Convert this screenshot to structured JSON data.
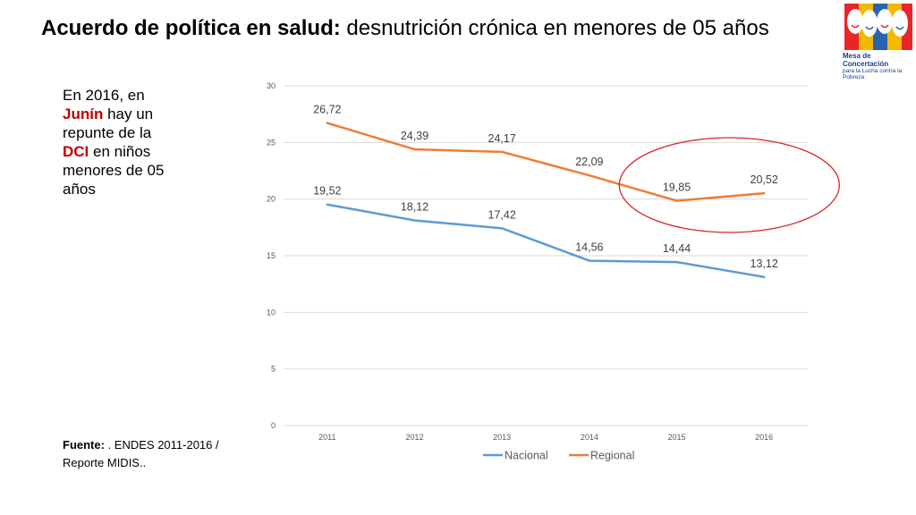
{
  "slide": {
    "title_bold": "Acuerdo de política en salud:",
    "title_rest": " desnutrición crónica en menores de 05 años",
    "callout": {
      "p1": "En 2016, en ",
      "junin": "Junín",
      "p2": " hay un repunte de la ",
      "dci": "DCI",
      "p3": " en niños menores de 05 años"
    },
    "source_label": "Fuente:",
    "source_text": " . ENDES 2011-2016 / Reporte MIDIS..",
    "logo": {
      "line1": "Mesa de Concertación",
      "line2": "para la Lucha contra la Pobreza"
    },
    "highlight_color": "#c00000"
  },
  "chart_data": {
    "type": "line",
    "categories": [
      "2011",
      "2012",
      "2013",
      "2014",
      "2015",
      "2016"
    ],
    "series": [
      {
        "name": "Nacional",
        "color": "#5b9bd5",
        "values": [
          19.52,
          18.12,
          17.42,
          14.56,
          14.44,
          13.12
        ],
        "labels": [
          "19,52",
          "18,12",
          "17,42",
          "14,56",
          "14,44",
          "13,12"
        ]
      },
      {
        "name": "Regional",
        "color": "#ed7d31",
        "values": [
          26.72,
          24.39,
          24.17,
          22.09,
          19.85,
          20.52
        ],
        "labels": [
          "26,72",
          "24,39",
          "24,17",
          "22,09",
          "19,85",
          "20,52"
        ]
      }
    ],
    "ylim": [
      0,
      30
    ],
    "yticks": [
      0,
      5,
      10,
      15,
      20,
      25,
      30
    ],
    "grid": true,
    "legend_position": "bottom",
    "annotation": {
      "type": "ellipse",
      "color": "#d9262a",
      "covers_categories": [
        "2015",
        "2016"
      ]
    }
  }
}
